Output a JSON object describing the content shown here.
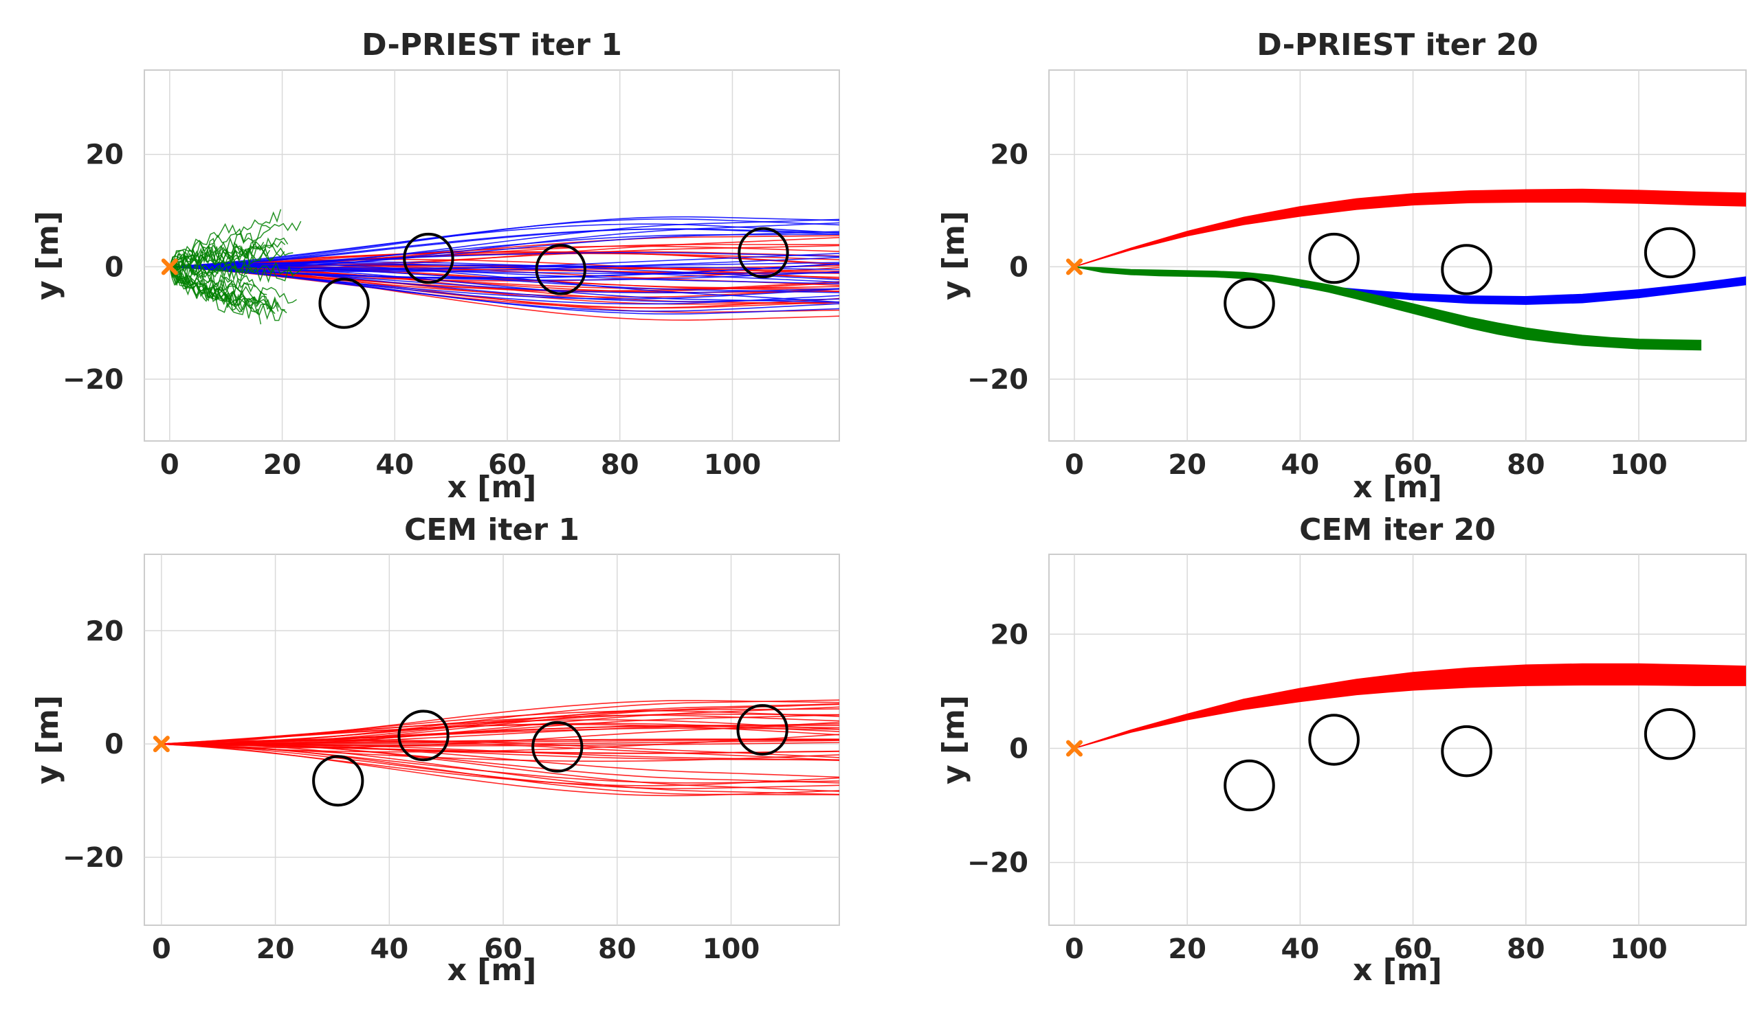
{
  "figure": {
    "layout": "2x2 grid",
    "colors": {
      "primary": "#ff0000",
      "blue": "#0000ff",
      "green": "#008000",
      "start": "#ff7f0e",
      "obstacle": "#000000",
      "grid": "#d9d9d9",
      "axes": "#cccccc"
    }
  },
  "chart_data": [
    {
      "type": "line",
      "title": "D-PRIEST iter 1",
      "xlabel": "x [m]",
      "ylabel": "y [m]",
      "xlim": [
        -4.5,
        119
      ],
      "ylim": [
        -31,
        35
      ],
      "xticks": [
        0,
        20,
        40,
        60,
        80,
        100
      ],
      "yticks": [
        -20,
        0,
        20
      ],
      "grid": true,
      "start_marker": {
        "x": 0,
        "y": 0,
        "label": "start"
      },
      "obstacles": [
        {
          "x": 31,
          "y": -6.5,
          "r": 4.3
        },
        {
          "x": 46,
          "y": 1.5,
          "r": 4.3
        },
        {
          "x": 69.5,
          "y": -0.5,
          "r": 4.3
        },
        {
          "x": 105.5,
          "y": 2.5,
          "r": 4.3
        }
      ],
      "series": [
        {
          "name": "red samples",
          "color": "#ff0000",
          "style": "fan",
          "x_end": 119,
          "y_end_min": -9,
          "y_end_max": 6,
          "count": 30
        },
        {
          "name": "blue samples",
          "color": "#0000ff",
          "style": "fan",
          "x_end": 119,
          "y_end_min": -8,
          "y_end_max": 8.5,
          "count": 30
        },
        {
          "name": "green samples",
          "color": "#008000",
          "style": "noisy",
          "x_end": 24,
          "y_end_min": -9,
          "y_end_max": 9,
          "count": 30
        }
      ]
    },
    {
      "type": "line",
      "title": "D-PRIEST iter 20",
      "xlabel": "x [m]",
      "ylabel": "y [m]",
      "xlim": [
        -4.5,
        119
      ],
      "ylim": [
        -31,
        35
      ],
      "xticks": [
        0,
        20,
        40,
        60,
        80,
        100
      ],
      "yticks": [
        -20,
        0,
        20
      ],
      "grid": true,
      "start_marker": {
        "x": 0,
        "y": 0,
        "label": "start"
      },
      "obstacles": [
        {
          "x": 31,
          "y": -6.5,
          "r": 4.3
        },
        {
          "x": 46,
          "y": 1.5,
          "r": 4.3
        },
        {
          "x": 69.5,
          "y": -0.5,
          "r": 4.3
        },
        {
          "x": 105.5,
          "y": 2.5,
          "r": 4.3
        }
      ],
      "series": [
        {
          "name": "red band",
          "color": "#ff0000",
          "style": "band",
          "x": [
            0,
            10,
            20,
            30,
            40,
            50,
            60,
            70,
            80,
            90,
            100,
            110,
            119
          ],
          "y_lower": [
            0,
            3,
            5.5,
            7.5,
            9,
            10.2,
            11,
            11.4,
            11.5,
            11.5,
            11.3,
            11,
            10.8
          ],
          "y_upper": [
            0,
            3.3,
            6.3,
            8.8,
            10.7,
            12.1,
            13.0,
            13.5,
            13.7,
            13.8,
            13.6,
            13.3,
            13.1
          ]
        },
        {
          "name": "blue band",
          "color": "#0000ff",
          "style": "band",
          "x": [
            40,
            50,
            60,
            70,
            80,
            90,
            100,
            110,
            119
          ],
          "y_lower": [
            -3.6,
            -4.9,
            -5.9,
            -6.5,
            -6.7,
            -6.4,
            -5.5,
            -4.3,
            -3.2
          ],
          "y_upper": [
            -3.1,
            -4.0,
            -4.8,
            -5.2,
            -5.3,
            -4.9,
            -4.1,
            -3.0,
            -1.8
          ]
        },
        {
          "name": "green band",
          "color": "#008000",
          "style": "band",
          "x": [
            0,
            5,
            10,
            15,
            20,
            25,
            30,
            35,
            40,
            45,
            50,
            55,
            60,
            65,
            70,
            75,
            80,
            85,
            90,
            95,
            100,
            105,
            111
          ],
          "y_lower": [
            0,
            -1.0,
            -1.4,
            -1.6,
            -1.7,
            -1.8,
            -2.1,
            -2.6,
            -3.5,
            -4.5,
            -5.7,
            -7.0,
            -8.3,
            -9.6,
            -10.9,
            -12.0,
            -12.9,
            -13.5,
            -14.0,
            -14.3,
            -14.6,
            -14.7,
            -14.8
          ],
          "y_upper": [
            0,
            -0.2,
            -0.5,
            -0.6,
            -0.7,
            -0.8,
            -1.0,
            -1.5,
            -2.3,
            -3.2,
            -4.3,
            -5.4,
            -6.6,
            -7.8,
            -9.0,
            -10.0,
            -10.9,
            -11.6,
            -12.2,
            -12.6,
            -12.9,
            -13.0,
            -13.1
          ]
        }
      ]
    },
    {
      "type": "line",
      "title": "CEM iter 1",
      "xlabel": "x [m]",
      "ylabel": "y [m]",
      "xlim": [
        -3,
        119
      ],
      "ylim": [
        -32,
        33.5
      ],
      "xticks": [
        0,
        20,
        40,
        60,
        80,
        100
      ],
      "yticks": [
        -20,
        0,
        20
      ],
      "grid": true,
      "start_marker": {
        "x": 0,
        "y": 0,
        "label": "start"
      },
      "obstacles": [
        {
          "x": 31,
          "y": -6.5,
          "r": 4.3
        },
        {
          "x": 46,
          "y": 1.5,
          "r": 4.3
        },
        {
          "x": 69.5,
          "y": -0.5,
          "r": 4.3
        },
        {
          "x": 105.5,
          "y": 2.5,
          "r": 4.3
        }
      ],
      "series": [
        {
          "name": "red samples",
          "color": "#ff0000",
          "style": "fan",
          "x_end": 119,
          "y_end_min": -9,
          "y_end_max": 8,
          "count": 40
        }
      ]
    },
    {
      "type": "line",
      "title": "CEM iter 20",
      "xlabel": "x [m]",
      "ylabel": "y [m]",
      "xlim": [
        -4.5,
        119
      ],
      "ylim": [
        -31,
        34
      ],
      "xticks": [
        0,
        20,
        40,
        60,
        80,
        100
      ],
      "yticks": [
        -20,
        0,
        20
      ],
      "grid": true,
      "start_marker": {
        "x": 0,
        "y": 0,
        "label": "start"
      },
      "obstacles": [
        {
          "x": 31,
          "y": -6.5,
          "r": 4.3
        },
        {
          "x": 46,
          "y": 1.5,
          "r": 4.3
        },
        {
          "x": 69.5,
          "y": -0.5,
          "r": 4.3
        },
        {
          "x": 105.5,
          "y": 2.5,
          "r": 4.3
        }
      ],
      "series": [
        {
          "name": "red band",
          "color": "#ff0000",
          "style": "band",
          "x": [
            0,
            10,
            20,
            30,
            40,
            50,
            60,
            70,
            80,
            90,
            100,
            110,
            119
          ],
          "y_lower": [
            0,
            2.8,
            5.0,
            6.8,
            8.2,
            9.4,
            10.2,
            10.7,
            11.0,
            11.1,
            11.1,
            11.0,
            11.0
          ],
          "y_upper": [
            0,
            3.2,
            6.0,
            8.6,
            10.5,
            12.1,
            13.3,
            14.1,
            14.6,
            14.8,
            14.8,
            14.6,
            14.4
          ]
        }
      ]
    }
  ]
}
